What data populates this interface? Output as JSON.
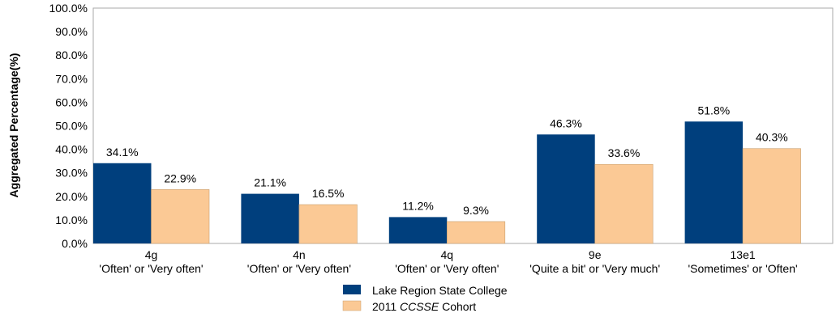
{
  "chart_data": {
    "type": "bar",
    "ylabel": "Aggregated Percentage(%)",
    "ylim": [
      0,
      100
    ],
    "yticks": [
      "0.0%",
      "10.0%",
      "20.0%",
      "30.0%",
      "40.0%",
      "50.0%",
      "60.0%",
      "70.0%",
      "80.0%",
      "90.0%",
      "100.0%"
    ],
    "categories": [
      {
        "code": "4g",
        "desc": "'Often' or 'Very often'"
      },
      {
        "code": "4n",
        "desc": "'Often' or 'Very often'"
      },
      {
        "code": "4q",
        "desc": "'Often' or 'Very often'"
      },
      {
        "code": "9e",
        "desc": "'Quite a bit' or 'Very much'"
      },
      {
        "code": "13e1",
        "desc": "'Sometimes' or 'Often'"
      }
    ],
    "series": [
      {
        "name": "Lake Region State College",
        "color": "#003f7d",
        "values": [
          34.1,
          21.1,
          11.2,
          46.3,
          51.8
        ],
        "labels": [
          "34.1%",
          "21.1%",
          "11.2%",
          "46.3%",
          "51.8%"
        ]
      },
      {
        "name_prefix": "2011 ",
        "name_italic": "CCSSE",
        "name_suffix": " Cohort",
        "color": "#fbc995",
        "values": [
          22.9,
          16.5,
          9.3,
          33.6,
          40.3
        ],
        "labels": [
          "22.9%",
          "16.5%",
          "9.3%",
          "33.6%",
          "40.3%"
        ]
      }
    ],
    "grid": false,
    "legend": "bottom"
  }
}
